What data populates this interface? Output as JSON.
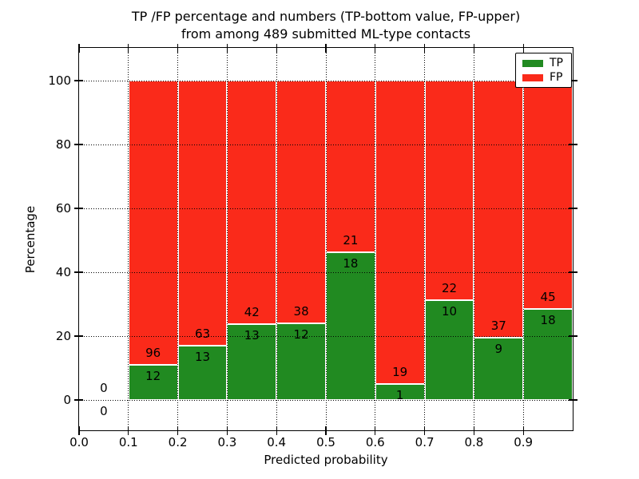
{
  "title": {
    "line1": "TP /FP percentage and numbers (TP-bottom value, FP-upper)",
    "line2": "from among 489 submitted ML-type contacts"
  },
  "axes": {
    "xlabel": "Predicted probability",
    "ylabel": "Percentage",
    "x_tick_labels": [
      "0.0",
      "0.1",
      "0.2",
      "0.3",
      "0.4",
      "0.5",
      "0.6",
      "0.7",
      "0.8",
      "0.9"
    ],
    "x_tick_values": [
      0.0,
      0.1,
      0.2,
      0.3,
      0.4,
      0.5,
      0.6,
      0.7,
      0.8,
      0.9
    ],
    "y_tick_labels": [
      "0",
      "20",
      "40",
      "60",
      "80",
      "100"
    ],
    "y_tick_values": [
      0,
      20,
      40,
      60,
      80,
      100
    ],
    "xlim": [
      0.0,
      1.0
    ],
    "ylim": [
      -9.5,
      110.25
    ],
    "grid_style": "dotted"
  },
  "legend": {
    "position": "upper right",
    "items": [
      {
        "label": "TP",
        "color": "#218a21"
      },
      {
        "label": "FP",
        "color": "#fa2a1a"
      }
    ]
  },
  "colors": {
    "tp": "#218a21",
    "fp": "#fa2a1a",
    "bar_edge": "#ffffff",
    "grid": "#000000",
    "text": "#000000",
    "background": "#ffffff"
  },
  "chart_data": {
    "type": "bar",
    "stacked": true,
    "normalized_to_percent": 100,
    "title": "TP /FP percentage and numbers (TP-bottom value, FP-upper) from among 489 submitted ML-type contacts",
    "xlabel": "Predicted probability",
    "ylabel": "Percentage",
    "total_contacts": 489,
    "legend": [
      "TP",
      "FP"
    ],
    "legend_position": "upper right",
    "grid": true,
    "xlim": [
      0.0,
      1.0
    ],
    "ylim": [
      -9.5,
      110.25
    ],
    "bin_width": 0.1,
    "series": [
      {
        "name": "TP",
        "counts": [
          0,
          12,
          13,
          13,
          12,
          18,
          1,
          10,
          9,
          18
        ]
      },
      {
        "name": "FP",
        "counts": [
          0,
          96,
          63,
          42,
          38,
          21,
          19,
          22,
          37,
          45
        ]
      }
    ],
    "bins": [
      {
        "range": [
          0.0,
          0.1
        ],
        "tp": 0,
        "fp": 0,
        "tp_pct": 0.0,
        "fp_pct": 0.0
      },
      {
        "range": [
          0.1,
          0.2
        ],
        "tp": 12,
        "fp": 96,
        "tp_pct": 11.11,
        "fp_pct": 88.89
      },
      {
        "range": [
          0.2,
          0.3
        ],
        "tp": 13,
        "fp": 63,
        "tp_pct": 17.11,
        "fp_pct": 82.89
      },
      {
        "range": [
          0.3,
          0.4
        ],
        "tp": 13,
        "fp": 42,
        "tp_pct": 23.64,
        "fp_pct": 76.36
      },
      {
        "range": [
          0.4,
          0.5
        ],
        "tp": 12,
        "fp": 38,
        "tp_pct": 24.0,
        "fp_pct": 76.0
      },
      {
        "range": [
          0.5,
          0.6
        ],
        "tp": 18,
        "fp": 21,
        "tp_pct": 46.15,
        "fp_pct": 53.85
      },
      {
        "range": [
          0.6,
          0.7
        ],
        "tp": 1,
        "fp": 19,
        "tp_pct": 5.0,
        "fp_pct": 95.0
      },
      {
        "range": [
          0.7,
          0.8
        ],
        "tp": 10,
        "fp": 22,
        "tp_pct": 31.25,
        "fp_pct": 68.75
      },
      {
        "range": [
          0.8,
          0.9
        ],
        "tp": 9,
        "fp": 37,
        "tp_pct": 19.57,
        "fp_pct": 80.43
      },
      {
        "range": [
          0.9,
          1.0
        ],
        "tp": 18,
        "fp": 45,
        "tp_pct": 28.57,
        "fp_pct": 71.43
      }
    ]
  }
}
